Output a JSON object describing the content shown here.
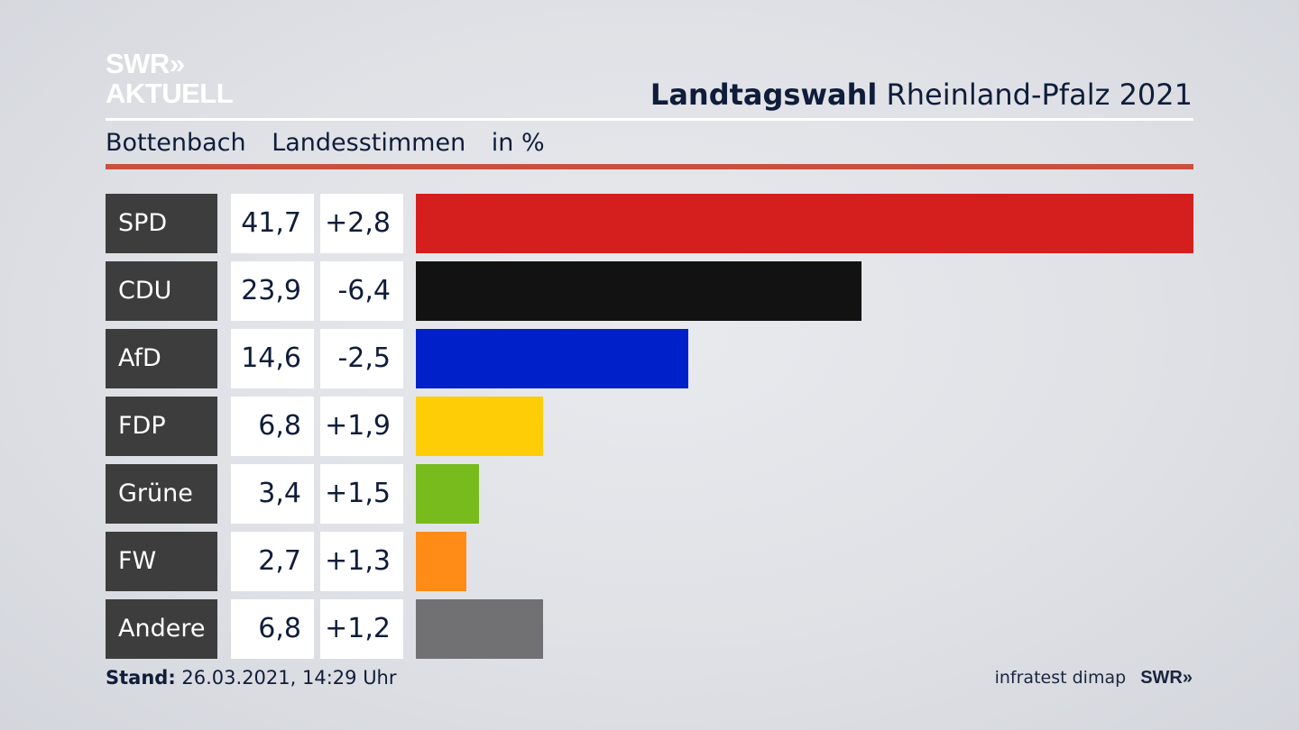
{
  "logo": {
    "line1": "SWR»",
    "line2": "AKTUELL"
  },
  "header": {
    "title_bold": "Landtagswahl",
    "title_rest": "Rheinland-Pfalz 2021"
  },
  "subheader": {
    "place": "Bottenbach",
    "type": "Landesstimmen",
    "unit": "in %"
  },
  "footer": {
    "stand_label": "Stand:",
    "stand_value": "26.03.2021, 14:29 Uhr",
    "source": "infratest dimap",
    "source_logo": "SWR»"
  },
  "chart_data": {
    "type": "bar",
    "categories": [
      "SPD",
      "CDU",
      "AfD",
      "FDP",
      "Grüne",
      "FW",
      "Andere"
    ],
    "values": [
      41.7,
      23.9,
      14.6,
      6.8,
      3.4,
      2.7,
      6.8
    ],
    "values_label": [
      "41,7",
      "23,9",
      "14,6",
      "6,8",
      "3,4",
      "2,7",
      "6,8"
    ],
    "diff_label": [
      "+2,8",
      "-6,4",
      "-2,5",
      "+1,9",
      "+1,5",
      "+1,3",
      "+1,2"
    ],
    "colors": [
      "#d51f1f",
      "#121212",
      "#0021c9",
      "#fecd05",
      "#78bb1d",
      "#ff8c17",
      "#717174"
    ],
    "xlim": [
      0,
      41.7
    ]
  }
}
